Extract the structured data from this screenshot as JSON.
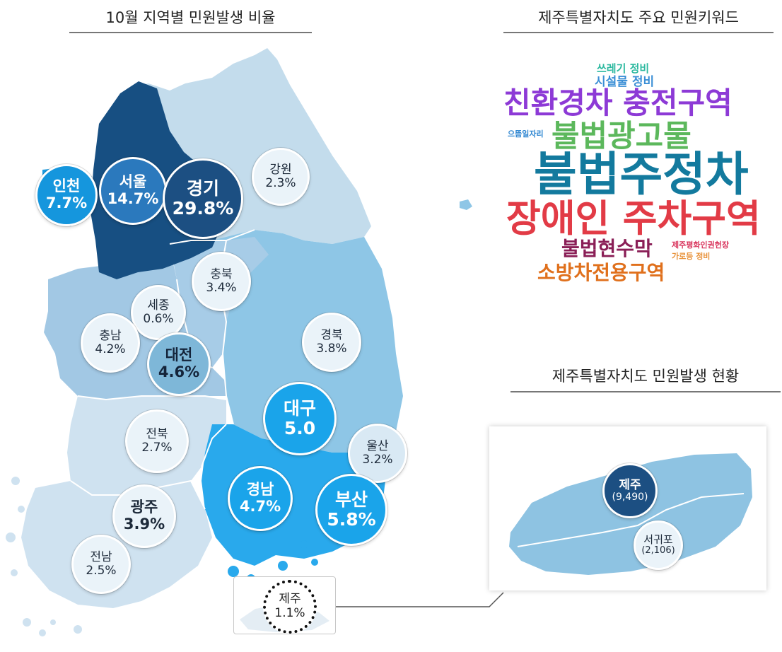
{
  "titles": {
    "map": "10월 지역별 민원발생 비율",
    "keywords": "제주특별자치도 주요 민원키워드",
    "jeju_status": "제주특별자치도 민원발생 현황"
  },
  "colors": {
    "seoul_gyeonggi": "#174f82",
    "gangwon": "#c3dcec",
    "chungbuk": "#a7cce7",
    "gyeongbuk": "#8ec6e6",
    "chungnam": "#a2c8e4",
    "jeolla": "#cfe2f0",
    "gyeongnam": "#29a9ec",
    "incheon": "#1b9be0"
  },
  "regions": {
    "incheon": {
      "name": "인천",
      "value": "7.7%"
    },
    "seoul": {
      "name": "서울",
      "value": "14.7%"
    },
    "gyeonggi": {
      "name": "경기",
      "value": "29.8%"
    },
    "gangwon": {
      "name": "강원",
      "value": "2.3%"
    },
    "chungbuk": {
      "name": "충북",
      "value": "3.4%"
    },
    "sejong": {
      "name": "세종",
      "value": "0.6%"
    },
    "chungnam": {
      "name": "충남",
      "value": "4.2%"
    },
    "daejeon": {
      "name": "대전",
      "value": "4.6%"
    },
    "gyeongbuk": {
      "name": "경북",
      "value": "3.8%"
    },
    "daegu": {
      "name": "대구",
      "value": "5.0"
    },
    "jeonbuk": {
      "name": "전북",
      "value": "2.7%"
    },
    "ulsan": {
      "name": "울산",
      "value": "3.2%"
    },
    "gyeongnam": {
      "name": "경남",
      "value": "4.7%"
    },
    "busan": {
      "name": "부산",
      "value": "5.8%"
    },
    "gwangju": {
      "name": "광주",
      "value": "3.9%"
    },
    "jeonnam": {
      "name": "전남",
      "value": "2.5%"
    },
    "jeju": {
      "name": "제주",
      "value": "1.1%"
    }
  },
  "keywords": [
    {
      "text": "쓰레기 정비",
      "color": "#2db9a0"
    },
    {
      "text": "시설물 정비",
      "color": "#3b8fd6"
    },
    {
      "text": "친환경차 충전구역",
      "color": "#8d3ad6"
    },
    {
      "text": "으뜸일자리",
      "color": "#2e86d1"
    },
    {
      "text": "불법광고물",
      "color": "#5cb85c"
    },
    {
      "text": "불법주정차",
      "color": "#137a9e"
    },
    {
      "text": "장애인 주차구역",
      "color": "#e23b46"
    },
    {
      "text": "불법현수막",
      "color": "#8a1e56"
    },
    {
      "text": "제주평화인권헌장",
      "color": "#d9365e"
    },
    {
      "text": "가로등 정비",
      "color": "#e8923a"
    },
    {
      "text": "소방차전용구역",
      "color": "#e0701c"
    }
  ],
  "jeju_detail": {
    "jeju": {
      "name": "제주",
      "value": "(9,490)"
    },
    "seogwipo": {
      "name": "서귀포",
      "value": "(2,106)"
    }
  }
}
